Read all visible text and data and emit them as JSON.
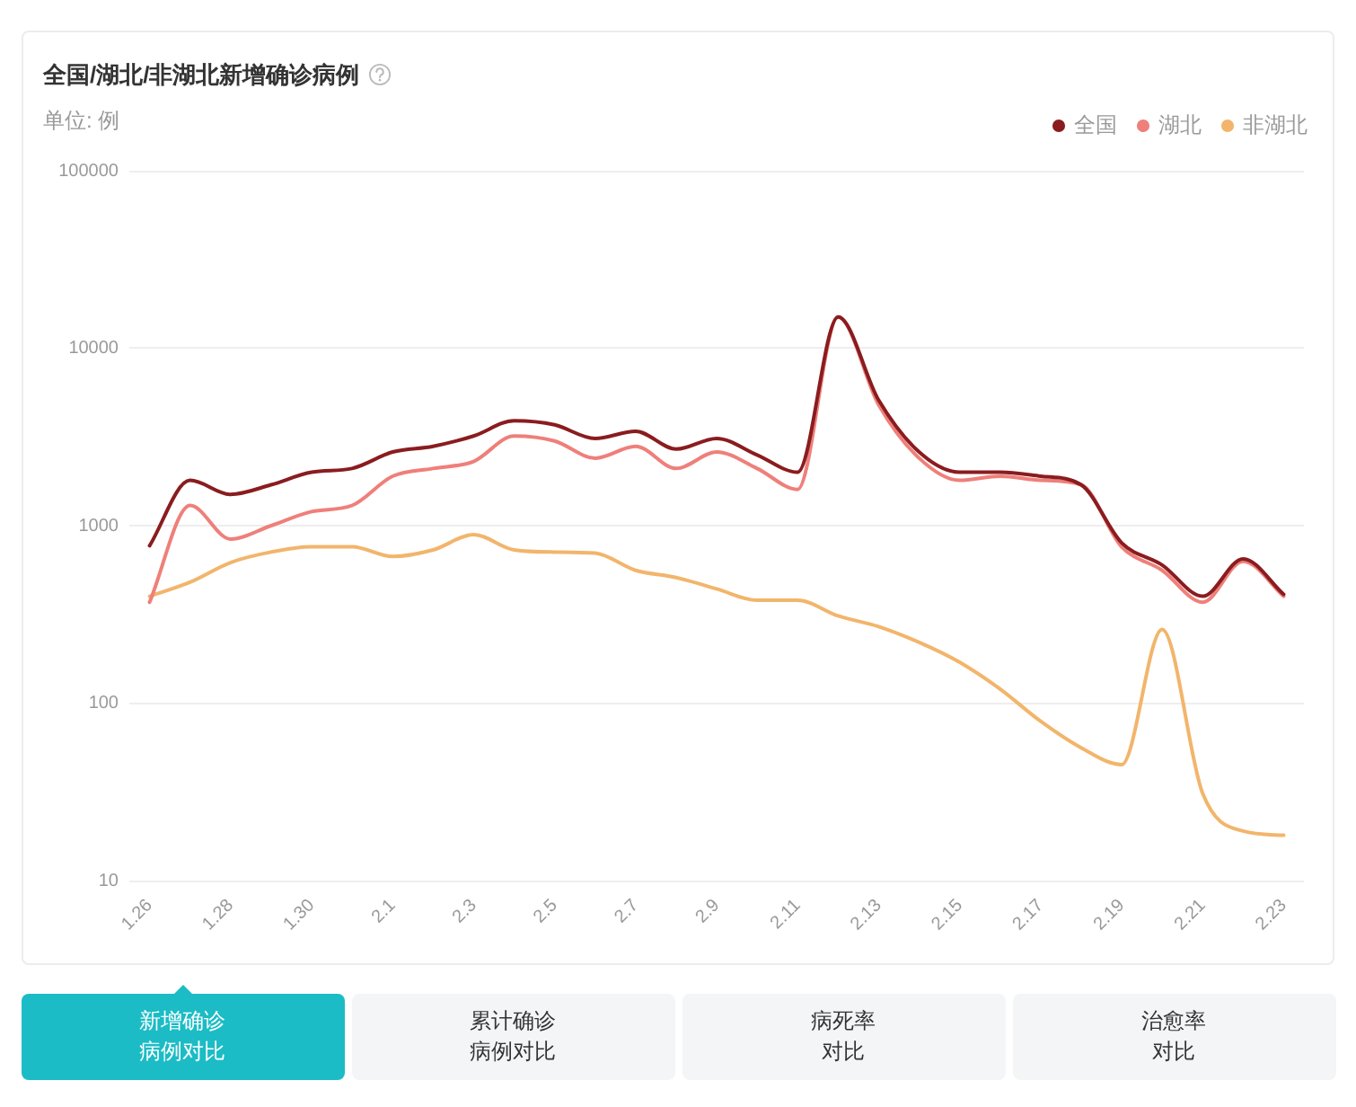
{
  "chart_data": {
    "type": "line",
    "title": "全国/湖北/非湖北新增确诊病例",
    "ylabel": "单位: 例",
    "categories": [
      "1.26",
      null,
      "1.28",
      null,
      "1.30",
      null,
      "2.1",
      null,
      "2.3",
      null,
      "2.5",
      null,
      "2.7",
      null,
      "2.9",
      null,
      "2.11",
      null,
      "2.13",
      null,
      "2.15",
      null,
      "2.17",
      null,
      "2.19",
      null,
      "2.21",
      null,
      "2.23"
    ],
    "series": [
      {
        "name": "全国",
        "color": "#8a1c1f",
        "values": [
          770,
          1800,
          1500,
          1700,
          2000,
          2100,
          2600,
          2800,
          3200,
          3900,
          3700,
          3100,
          3400,
          2700,
          3100,
          2500,
          2000,
          15000,
          5100,
          2600,
          2000,
          2000,
          1900,
          1700,
          800,
          600,
          400,
          650,
          410
        ]
      },
      {
        "name": "湖北",
        "color": "#ef7f7a",
        "values": [
          370,
          1300,
          840,
          1000,
          1200,
          1300,
          1900,
          2100,
          2300,
          3200,
          3000,
          2400,
          2800,
          2100,
          2600,
          2100,
          1600,
          15000,
          4800,
          2400,
          1800,
          1900,
          1800,
          1700,
          760,
          560,
          370,
          630,
          400
        ]
      },
      {
        "name": "非湖北",
        "color": "#f2b56b",
        "values": [
          400,
          480,
          620,
          710,
          760,
          760,
          670,
          730,
          890,
          730,
          710,
          700,
          560,
          510,
          440,
          380,
          380,
          310,
          270,
          220,
          170,
          120,
          79,
          56,
          45,
          260,
          31,
          19,
          18
        ]
      }
    ],
    "log": true,
    "ylim": [
      10,
      100000
    ],
    "yticks": [
      10,
      100,
      1000,
      10000,
      100000
    ],
    "grid": "y",
    "legend": "top right",
    "marker": "none",
    "line_style": "solid",
    "annotations": [
      "新增确诊病例对比",
      "累计确诊病例对比",
      "病死率对比",
      "治愈率对比"
    ]
  }
}
